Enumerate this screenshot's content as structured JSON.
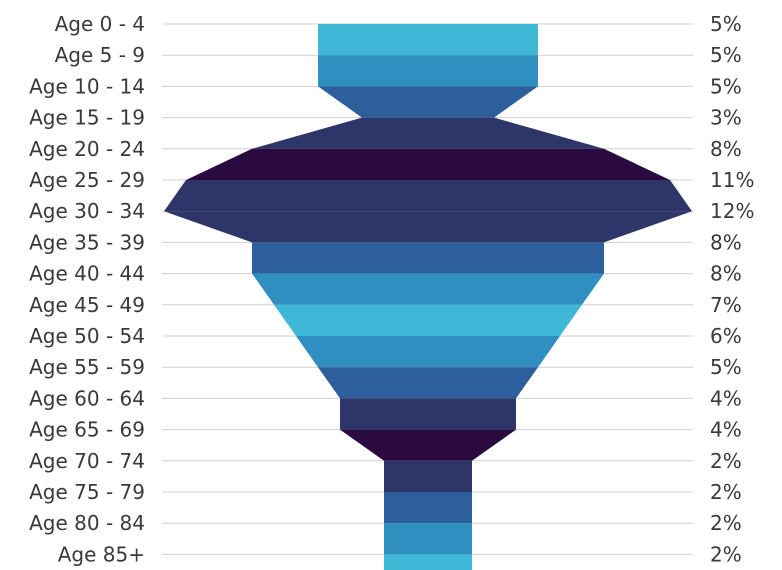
{
  "chart_data": {
    "type": "area",
    "categories": [
      "Age 0 - 4",
      "Age 5 - 9",
      "Age 10 - 14",
      "Age 15 - 19",
      "Age 20 - 24",
      "Age 25 - 29",
      "Age 30 - 34",
      "Age 35 - 39",
      "Age 40 - 44",
      "Age 45 - 49",
      "Age 50 - 54",
      "Age 55 - 59",
      "Age 60 - 64",
      "Age 65 - 69",
      "Age 70 - 74",
      "Age 75 - 79",
      "Age 80 - 84",
      "Age 85+"
    ],
    "value_labels": [
      "5%",
      "5%",
      "5%",
      "3%",
      "8%",
      "11%",
      "12%",
      "8%",
      "8%",
      "7%",
      "6%",
      "5%",
      "4%",
      "4%",
      "2%",
      "2%",
      "2%",
      "2%"
    ],
    "values": [
      5,
      5,
      5,
      3,
      8,
      11,
      12,
      8,
      8,
      7,
      6,
      5,
      4,
      4,
      2,
      2,
      2,
      2
    ],
    "xlim": [
      0,
      12
    ],
    "grid": true,
    "colors": [
      "#3fb8d8",
      "#2e8fc0",
      "#2c5f9c",
      "#2e3568",
      "#2b0b3f",
      "#2e3568",
      "#2e3568",
      "#2c5f9c",
      "#2e8fc0",
      "#3fb8d8",
      "#2e8fc0",
      "#2c5f9c",
      "#2e3568",
      "#2b0b3f",
      "#2e3568",
      "#2c5f9c",
      "#2e8fc0",
      "#3fb8d8"
    ]
  }
}
